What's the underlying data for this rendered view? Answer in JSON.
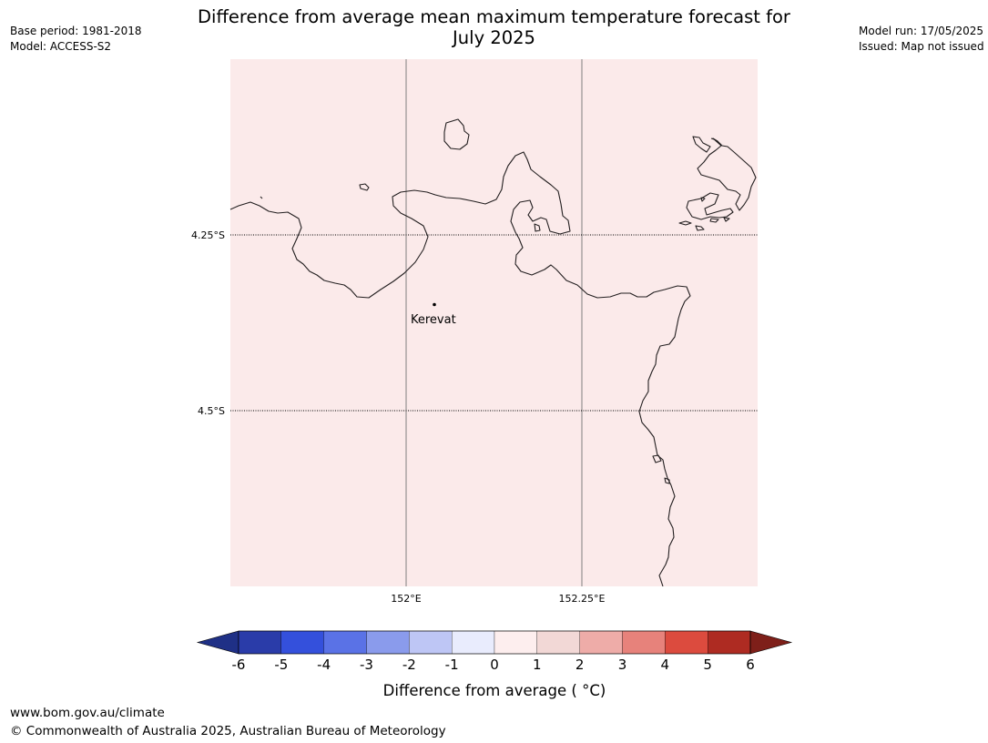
{
  "header": {
    "title_line1": "Difference from average mean maximum temperature forecast for",
    "title_line2": "July 2025",
    "base_period": "Base period: 1981-2018",
    "model": "Model: ACCESS-S2",
    "model_run": "Model run: 17/05/2025",
    "issued": "Issued: Map not issued"
  },
  "map": {
    "fill_color": "#fbeaea",
    "lat_labels": [
      "4.25°S",
      "4.5°S"
    ],
    "lon_labels": [
      "152°E",
      "152.25°E"
    ],
    "place": {
      "name": "Kerevat"
    }
  },
  "colorbar": {
    "ticks": [
      "-6",
      "-5",
      "-4",
      "-3",
      "-2",
      "-1",
      "0",
      "1",
      "2",
      "3",
      "4",
      "5",
      "6"
    ],
    "colors": [
      "#2a3ca9",
      "#3450dc",
      "#5a72e6",
      "#8a9bec",
      "#bec6f5",
      "#e9ecfd",
      "#fdeeee",
      "#f2d8d6",
      "#eeaca8",
      "#e7827b",
      "#dc4b3e",
      "#ae2b22"
    ],
    "low_extend_color": "#1f3086",
    "high_extend_color": "#7e1f19",
    "label": "Difference from average ( °C)"
  },
  "footer": {
    "url": "www.bom.gov.au/climate",
    "copyright": "© Commonwealth of Australia 2025, Australian Bureau of Meteorology"
  }
}
